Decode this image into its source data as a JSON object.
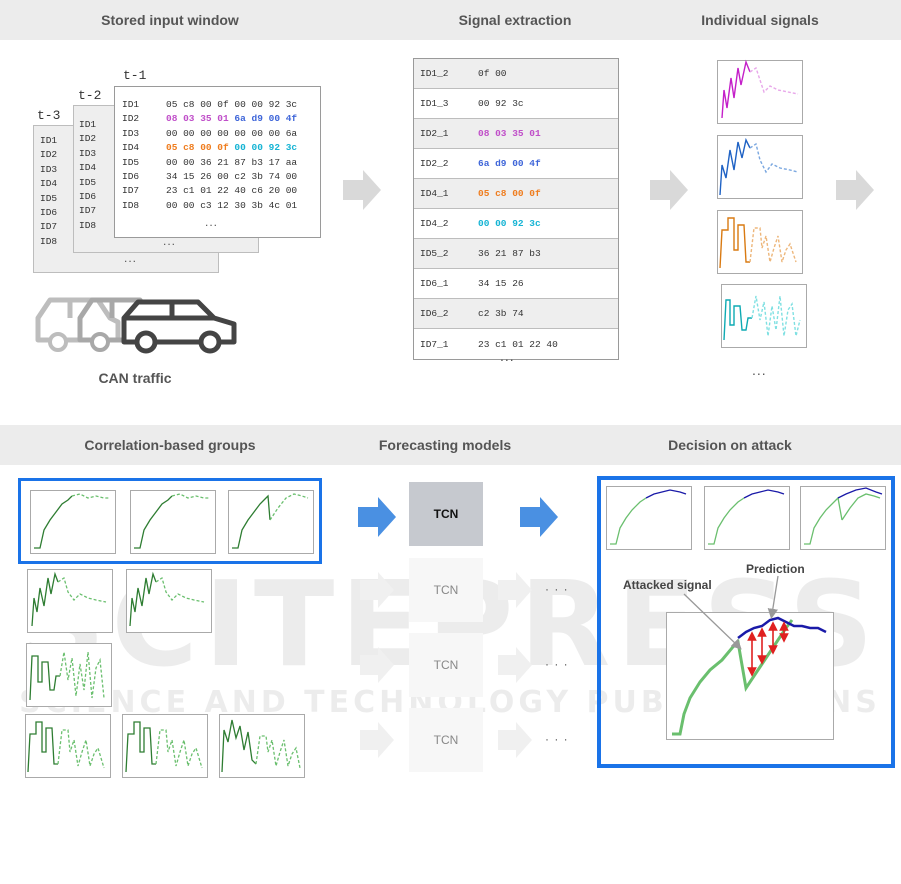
{
  "headers": {
    "stored_input": "Stored input window",
    "signal_extraction": "Signal extraction",
    "individual_signals": "Individual signals",
    "correlation_groups": "Correlation-based groups",
    "forecasting_models": "Forecasting models",
    "decision": "Decision on attack"
  },
  "window": {
    "t3": "t-3",
    "t2": "t-2",
    "t1": "t-1",
    "ids": [
      "ID1",
      "ID2",
      "ID3",
      "ID4",
      "ID5",
      "ID6",
      "ID7",
      "ID8"
    ],
    "rows": [
      [
        "05 c8 00 0f 00 00 92 3c"
      ],
      [
        "08 03 35 01 ",
        "6a d9 00 4f"
      ],
      [
        "00 00 00 00 00 00 00 6a"
      ],
      [
        "05 c8 00 0f ",
        "00 00 92 3c"
      ],
      [
        "00 00 36 21 87 b3 17 aa"
      ],
      [
        "34 15 26 00 c2 3b 74 00"
      ],
      [
        "23 c1 01 22 40 c6 20 00"
      ],
      [
        "00 00 c3 12 30 3b 4c 01"
      ]
    ],
    "ellipsis": "..."
  },
  "can_traffic": "CAN traffic",
  "signals": [
    {
      "id": "ID1_2",
      "value": "0f 00",
      "color": "#333333"
    },
    {
      "id": "ID1_3",
      "value": "00 92 3c",
      "color": "#333333"
    },
    {
      "id": "ID2_1",
      "value": "08 03 35 01",
      "color": "#c04fc9"
    },
    {
      "id": "ID2_2",
      "value": "6a d9 00 4f",
      "color": "#3f66d9"
    },
    {
      "id": "ID4_1",
      "value": "05 c8 00 0f",
      "color": "#ef7d1f"
    },
    {
      "id": "ID4_2",
      "value": "00 00 92 3c",
      "color": "#16b4d4"
    },
    {
      "id": "ID5_2",
      "value": "36 21 87 b3",
      "color": "#333333"
    },
    {
      "id": "ID6_1",
      "value": "34 15 26",
      "color": "#333333"
    },
    {
      "id": "ID6_2",
      "value": "c2 3b 74",
      "color": "#333333"
    },
    {
      "id": "ID7_1",
      "value": "23 c1 01 22 40",
      "color": "#333333"
    }
  ],
  "ellipsis": "...",
  "ellipsis_wide": "· · ·",
  "tcn": {
    "main": "TCN",
    "others": [
      "TCN",
      "TCN",
      "TCN"
    ]
  },
  "decision_labels": {
    "attacked": "Attacked signal",
    "prediction": "Prediction"
  },
  "colors": {
    "accent_blue": "#1a73e8",
    "arrow_blue": "#4a90e2",
    "green_solid": "#2e7d32",
    "green_bright": "#66bb6a",
    "prediction_blue": "#1a1aa8",
    "attack_red": "#e02020",
    "magenta": "#c04fc9",
    "blue": "#2d72c8",
    "orange": "#e08a2a",
    "cyan": "#22c3c9"
  }
}
